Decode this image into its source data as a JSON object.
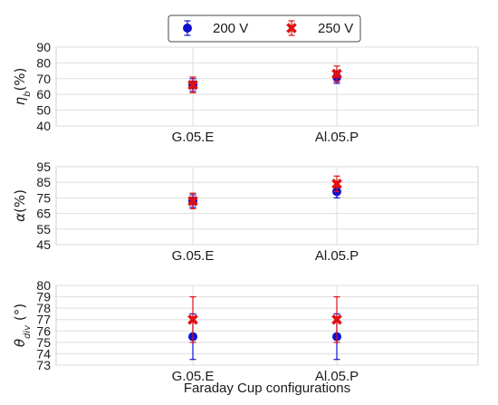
{
  "chart_data": {
    "type": "scatter",
    "xlabel": "Faraday Cup configurations",
    "categories": [
      "G.05.E",
      "Al.05.P"
    ],
    "legend": {
      "placement": "top-center",
      "entries": [
        {
          "name": "200 V",
          "color": "#1010d0",
          "marker": "circle"
        },
        {
          "name": "250 V",
          "color": "#e01010",
          "marker": "x"
        }
      ]
    },
    "grid": true,
    "panels": [
      {
        "ylabel": "η_b(%)",
        "ylabel_main": "η",
        "ylabel_sub": "b",
        "ylabel_tail": "(%)",
        "ylim": [
          40,
          90
        ],
        "yticks": [
          40,
          50,
          60,
          70,
          80,
          90
        ],
        "series": [
          {
            "name": "200 V",
            "values": [
              66,
              71
            ],
            "err": [
              4,
              4
            ]
          },
          {
            "name": "250 V",
            "values": [
              66,
              73
            ],
            "err": [
              5,
              5
            ]
          }
        ]
      },
      {
        "ylabel": "α(%)",
        "ylabel_main": "α",
        "ylabel_sub": "",
        "ylabel_tail": "(%)",
        "ylim": [
          45,
          95
        ],
        "yticks": [
          45,
          55,
          65,
          75,
          85,
          95
        ],
        "series": [
          {
            "name": "200 V",
            "values": [
              73,
              79
            ],
            "err": [
              4,
              4
            ]
          },
          {
            "name": "250 V",
            "values": [
              73,
              84
            ],
            "err": [
              5,
              5
            ]
          }
        ]
      },
      {
        "ylabel": "θ_div (°)",
        "ylabel_main": "θ",
        "ylabel_sub": "div",
        "ylabel_tail": " (°)",
        "ylim": [
          73,
          80
        ],
        "yticks": [
          73,
          74,
          75,
          76,
          77,
          78,
          79,
          80
        ],
        "series": [
          {
            "name": "200 V",
            "values": [
              75.5,
              75.5
            ],
            "err": [
              2,
              2
            ]
          },
          {
            "name": "250 V",
            "values": [
              77,
              77
            ],
            "err": [
              2,
              2
            ]
          }
        ]
      }
    ]
  }
}
